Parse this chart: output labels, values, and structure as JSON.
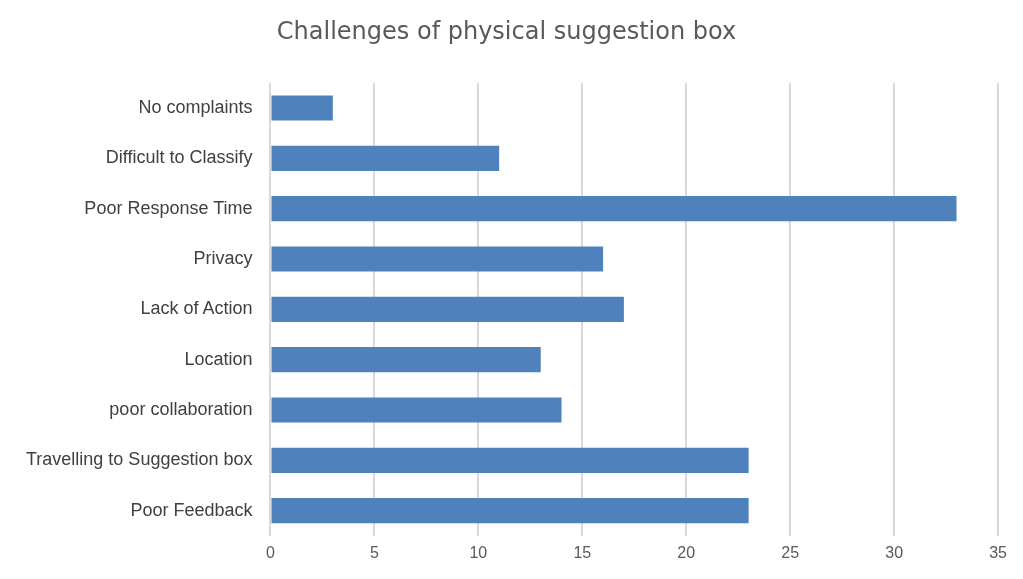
{
  "chart_data": {
    "type": "bar",
    "orientation": "horizontal",
    "title": "Challenges of physical suggestion box",
    "categories": [
      "No complaints",
      "Difficult to Classify",
      "Poor Response Time",
      "Privacy",
      "Lack of Action",
      "Location",
      "poor collaboration",
      "Travelling to Suggestion box",
      "Poor Feedback"
    ],
    "values": [
      3,
      11,
      33,
      16,
      17,
      13,
      14,
      23,
      23
    ],
    "color": "#4f81bd",
    "xlim": [
      0,
      35
    ],
    "xticks": [
      0,
      5,
      10,
      15,
      20,
      25,
      30,
      35
    ],
    "grid": "x",
    "legend": false
  }
}
